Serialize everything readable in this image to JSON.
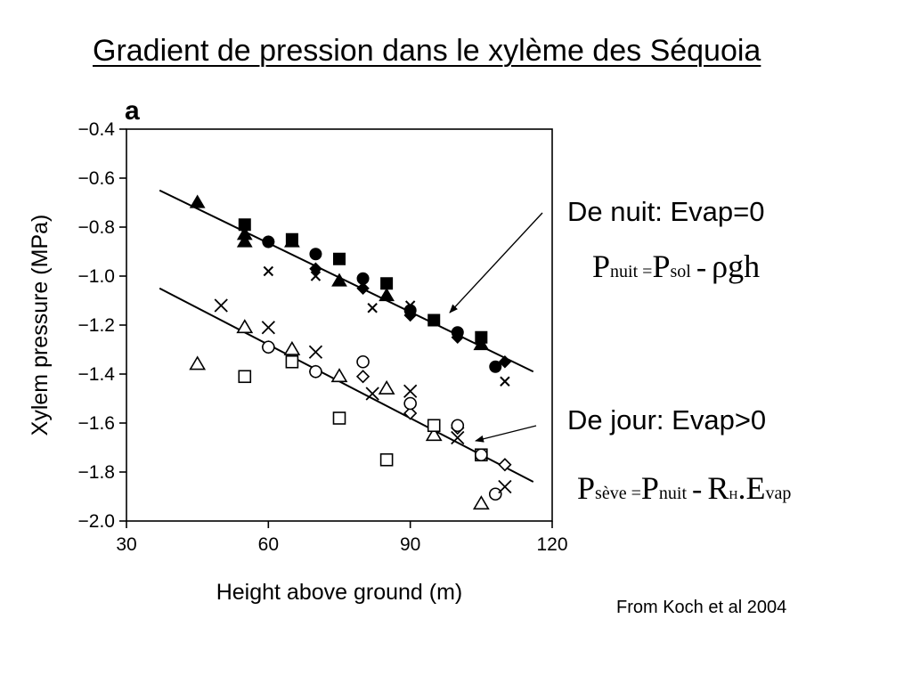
{
  "title": "Gradient de pression dans le xylème des Séquoia",
  "panel_label": "a",
  "night": {
    "heading": "De nuit: Evap=0",
    "lhs": "P",
    "lhs_sub": "nuit =",
    "rhs": "P",
    "rhs_sub": "sol",
    "op": "-",
    "term": "ρgh"
  },
  "day": {
    "heading": "De jour: Evap>0",
    "lhs": "P",
    "lhs_sub": "sève =",
    "rhs": "P",
    "rhs_sub": "nuit",
    "op": "-",
    "r": "R",
    "r_sub": "H",
    "dot": ".",
    "e": "E",
    "e_sub": "vap"
  },
  "source": "From Koch et al 2004",
  "chart_data": {
    "type": "scatter",
    "xlabel": "Height above ground (m)",
    "ylabel": "Xylem pressure (MPa)",
    "xlim": [
      30,
      120
    ],
    "ylim": [
      -2.0,
      -0.4
    ],
    "xticks": [
      30,
      60,
      90,
      120
    ],
    "yticks": [
      -0.4,
      -0.6,
      -0.8,
      -1.0,
      -1.2,
      -1.4,
      -1.6,
      -1.8,
      -2.0
    ],
    "ytick_labels": [
      "−0.4",
      "−0.6",
      "−0.8",
      "−1.0",
      "−1.2",
      "−1.4",
      "−1.6",
      "−1.8",
      "−2.0"
    ],
    "trendlines": [
      {
        "group": "night",
        "x": [
          37,
          116
        ],
        "y": [
          -0.65,
          -1.39
        ]
      },
      {
        "group": "day",
        "x": [
          37,
          116
        ],
        "y": [
          -1.05,
          -1.84
        ]
      }
    ],
    "series": [
      {
        "group": "night",
        "marker": "triangle-filled",
        "points": [
          [
            45,
            -0.7
          ],
          [
            55,
            -0.86
          ],
          [
            55,
            -0.83
          ],
          [
            65,
            -0.86
          ],
          [
            75,
            -1.02
          ],
          [
            85,
            -1.08
          ],
          [
            105,
            -1.28
          ]
        ]
      },
      {
        "group": "night",
        "marker": "square-filled",
        "points": [
          [
            55,
            -0.79
          ],
          [
            65,
            -0.85
          ],
          [
            75,
            -0.93
          ],
          [
            85,
            -1.03
          ],
          [
            95,
            -1.18
          ],
          [
            105,
            -1.25
          ]
        ]
      },
      {
        "group": "night",
        "marker": "diamond-filled",
        "points": [
          [
            60,
            -0.86
          ],
          [
            70,
            -0.97
          ],
          [
            80,
            -1.05
          ],
          [
            90,
            -1.16
          ],
          [
            100,
            -1.25
          ],
          [
            110,
            -1.35
          ]
        ]
      },
      {
        "group": "night",
        "marker": "circle-filled",
        "points": [
          [
            60,
            -0.86
          ],
          [
            70,
            -0.91
          ],
          [
            80,
            -1.01
          ],
          [
            90,
            -1.14
          ],
          [
            100,
            -1.23
          ],
          [
            108,
            -1.37
          ]
        ]
      },
      {
        "group": "night",
        "marker": "x-small",
        "points": [
          [
            60,
            -0.98
          ],
          [
            70,
            -1.0
          ],
          [
            82,
            -1.13
          ],
          [
            90,
            -1.12
          ],
          [
            110,
            -1.43
          ]
        ]
      },
      {
        "group": "day",
        "marker": "triangle-open",
        "points": [
          [
            45,
            -1.36
          ],
          [
            55,
            -1.21
          ],
          [
            65,
            -1.3
          ],
          [
            75,
            -1.41
          ],
          [
            85,
            -1.46
          ],
          [
            95,
            -1.65
          ],
          [
            105,
            -1.93
          ]
        ]
      },
      {
        "group": "day",
        "marker": "square-open",
        "points": [
          [
            55,
            -1.41
          ],
          [
            65,
            -1.35
          ],
          [
            75,
            -1.58
          ],
          [
            85,
            -1.75
          ],
          [
            95,
            -1.61
          ],
          [
            105,
            -1.73
          ]
        ]
      },
      {
        "group": "day",
        "marker": "diamond-open",
        "points": [
          [
            60,
            -1.29
          ],
          [
            70,
            -1.39
          ],
          [
            80,
            -1.41
          ],
          [
            90,
            -1.56
          ],
          [
            100,
            -1.62
          ],
          [
            110,
            -1.77
          ]
        ]
      },
      {
        "group": "day",
        "marker": "circle-open",
        "points": [
          [
            60,
            -1.29
          ],
          [
            70,
            -1.39
          ],
          [
            80,
            -1.35
          ],
          [
            90,
            -1.52
          ],
          [
            100,
            -1.61
          ],
          [
            105,
            -1.73
          ],
          [
            108,
            -1.89
          ]
        ]
      },
      {
        "group": "day",
        "marker": "x-large",
        "points": [
          [
            50,
            -1.12
          ],
          [
            60,
            -1.21
          ],
          [
            70,
            -1.31
          ],
          [
            82,
            -1.48
          ],
          [
            90,
            -1.47
          ],
          [
            100,
            -1.66
          ],
          [
            110,
            -1.86
          ]
        ]
      }
    ]
  }
}
